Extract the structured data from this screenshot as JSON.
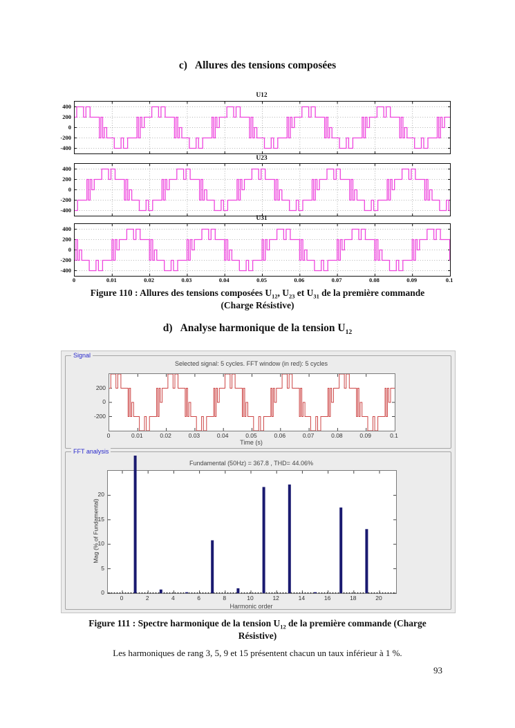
{
  "page": {
    "number": "93"
  },
  "headings": {
    "c": {
      "marker": "c)",
      "text": "Allures des tensions composées"
    },
    "d": {
      "marker": "d)",
      "text_prefix": "Analyse harmonique de la tension U",
      "subscript": "12"
    }
  },
  "captions": {
    "fig110": {
      "p1": "Figure 110 : Allures des tensions composées U",
      "s1": "12",
      "p2": ", U",
      "s2": "23",
      "p3": " et U",
      "s3": "31",
      "p4": " de la première commande",
      "line2": "(Charge Résistive)"
    },
    "fig111": {
      "p1": "Figure 111 : Spectre harmonique de la tension U",
      "s1": "12",
      "p2": " de la première commande (Charge",
      "line2": "Résistive)"
    }
  },
  "paragraph": "Les harmoniques de rang 3, 5, 9 et 15 présentent chacun un taux inférieur à 1 %.",
  "matlab_window": {
    "signal_group_label": "Signal",
    "fft_group_label": "FFT analysis",
    "signal_plot_title": "Selected signal: 5 cycles. FFT window (in red): 5 cycles",
    "signal_xlabel": "Time (s)",
    "fft_plot_title": "Fundamental (50Hz) = 367.8 , THD= 44.06%",
    "fft_xlabel": "Harmonic order",
    "fft_ylabel": "Mag (% of Fundamental)"
  },
  "colors": {
    "waveform_magenta": "#ee44dd",
    "signal_red": "#cc4444",
    "fft_bar_navy": "#1a1a70",
    "group_label_blue": "#2929cc",
    "window_gray": "#ececec"
  },
  "chart_data": [
    {
      "id": "line-voltages",
      "type": "line",
      "subplots": [
        {
          "title": "U12",
          "phase_shift_periods": 0
        },
        {
          "title": "U23",
          "phase_shift_periods": 0.33333
        },
        {
          "title": "U31",
          "phase_shift_periods": 0.66667
        }
      ],
      "waveform": {
        "period_s": 0.02,
        "duration_s": 0.1,
        "frequency_hz": 50,
        "levels_V": [
          -400,
          -200,
          0,
          200,
          400
        ],
        "half_period_pattern": [
          [
            0,
            200
          ],
          [
            0.055,
            400
          ],
          [
            0.235,
            200
          ],
          [
            0.3,
            400
          ],
          [
            0.41,
            200
          ],
          [
            0.66,
            -200
          ],
          [
            0.7,
            200
          ],
          [
            0.745,
            -200
          ],
          [
            0.79,
            0
          ],
          [
            0.855,
            -200
          ]
        ],
        "symmetry": "second half period = first half negated"
      },
      "ylim": [
        -500,
        500
      ],
      "yticks": [
        400,
        200,
        0,
        -200,
        -400
      ],
      "xtick_labels": [
        "0",
        "0.01",
        "0.02",
        "0.03",
        "0.04",
        "0.05",
        "0.06",
        "0.07",
        "0.08",
        "0.09",
        "0.1"
      ],
      "grid": "dotted"
    },
    {
      "id": "fft-selected-signal",
      "type": "line",
      "title": "Selected signal: 5 cycles. FFT window (in red): 5 cycles",
      "xlabel": "Time (s)",
      "ylim": [
        -400,
        400
      ],
      "yticks": [
        200,
        0,
        -200
      ],
      "xtick_labels": [
        "0",
        "0.01",
        "0.02",
        "0.03",
        "0.04",
        "0.05",
        "0.06",
        "0.07",
        "0.08",
        "0.09",
        "0.1"
      ],
      "waveform": "same stepped wave as U12, 5 cycles of 50 Hz",
      "grid": "off"
    },
    {
      "id": "fft-spectrum",
      "type": "bar",
      "title": "Fundamental (50Hz) = 367.8 , THD= 44.06%",
      "xlabel": "Harmonic order",
      "ylabel": "Mag (% of Fundamental)",
      "categories": [
        0,
        1,
        2,
        3,
        4,
        5,
        6,
        7,
        8,
        9,
        10,
        11,
        12,
        13,
        14,
        15,
        16,
        17,
        18,
        19,
        20
      ],
      "values": [
        0,
        100,
        0,
        0.75,
        0,
        0.2,
        0,
        10.8,
        0,
        1.0,
        0,
        21.7,
        0,
        22.2,
        0,
        0.2,
        0,
        17.5,
        0,
        13.1,
        0
      ],
      "ylim": [
        0,
        25
      ],
      "yticks": [
        0,
        5,
        10,
        15,
        20
      ],
      "xticks": [
        0,
        2,
        4,
        6,
        8,
        10,
        12,
        14,
        16,
        18,
        20
      ],
      "fundamental_hz": 50,
      "fundamental_value": 367.8,
      "thd_percent": 44.06,
      "note": "fundamental bar (order 1 = 100%) is drawn overflowing the axes top, as in the MATLAB powergui FFT tool"
    }
  ]
}
